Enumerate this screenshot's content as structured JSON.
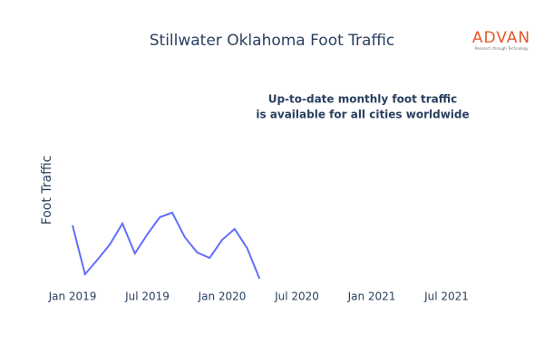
{
  "chart_data": {
    "type": "line",
    "title": "Stillwater Oklahoma Foot Traffic",
    "y_label": "Foot Traffic",
    "annotation": [
      "Up-to-date monthly foot traffic",
      "is available for all cities worldwide"
    ],
    "logo": {
      "text": "ADVAN",
      "tagline": "Research through Technology"
    },
    "x": [
      "2019-01",
      "2019-02",
      "2019-03",
      "2019-04",
      "2019-05",
      "2019-06",
      "2019-07",
      "2019-08",
      "2019-09",
      "2019-10",
      "2019-11",
      "2019-12",
      "2020-01",
      "2020-02",
      "2020-03",
      "2020-04"
    ],
    "series": [
      {
        "name": "Foot Traffic",
        "color": "#636efa",
        "values": [
          61,
          7,
          23,
          40,
          63,
          30,
          51,
          70,
          75,
          48,
          31,
          25,
          45,
          57,
          36,
          2
        ]
      }
    ],
    "xlim": [
      "2018-11",
      "2021-09"
    ],
    "xticks": [
      {
        "value": "2019-01",
        "label": "Jan 2019"
      },
      {
        "value": "2019-07",
        "label": "Jul 2019"
      },
      {
        "value": "2020-01",
        "label": "Jan 2020"
      },
      {
        "value": "2020-07",
        "label": "Jul 2020"
      },
      {
        "value": "2021-01",
        "label": "Jan 2021"
      },
      {
        "value": "2021-07",
        "label": "Jul 2021"
      }
    ],
    "ylim": [
      0,
      100
    ]
  }
}
